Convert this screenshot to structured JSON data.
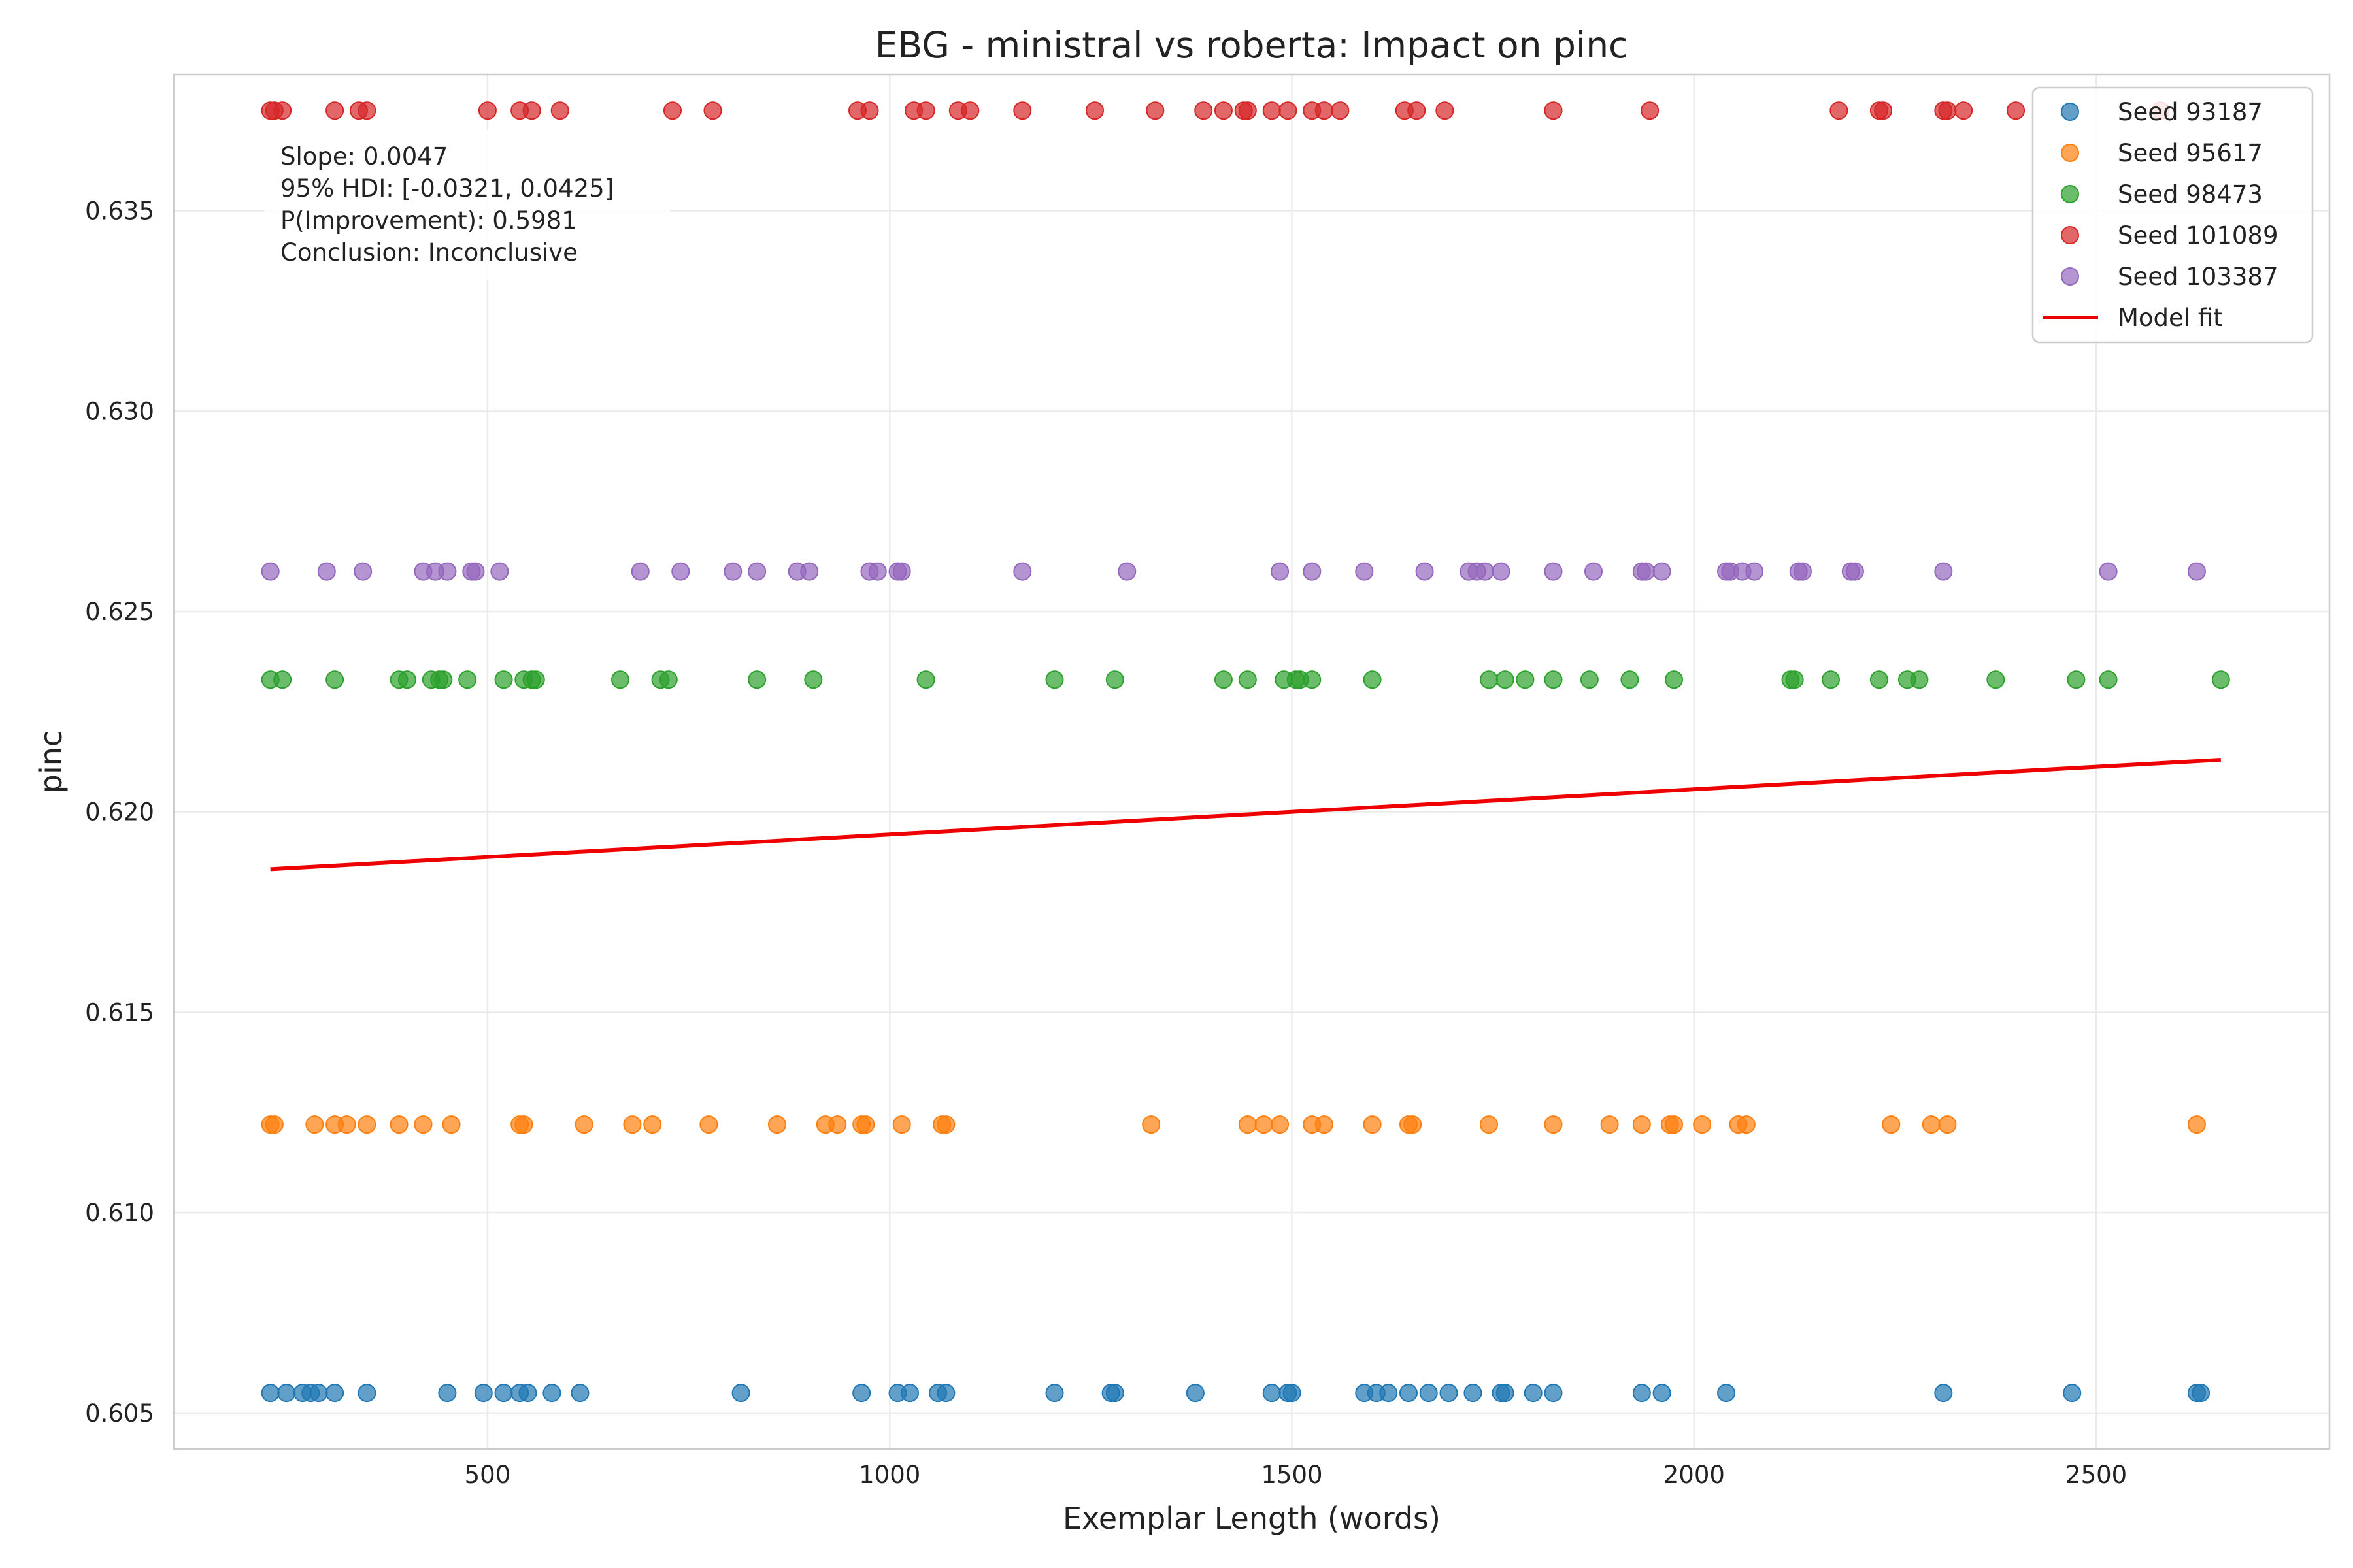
{
  "chart_data": {
    "type": "scatter",
    "title": "EBG - ministral vs roberta: Impact on pinc",
    "xlabel": "Exemplar Length (words)",
    "ylabel": "pinc",
    "xlim": [
      110,
      2790
    ],
    "ylim": [
      0.6041,
      0.6384
    ],
    "xticks": [
      500,
      1000,
      1500,
      2000,
      2500
    ],
    "xtick_labels": [
      "500",
      "1000",
      "1500",
      "2000",
      "2500"
    ],
    "yticks": [
      0.605,
      0.61,
      0.615,
      0.62,
      0.625,
      0.63,
      0.635
    ],
    "ytick_labels": [
      "0.605",
      "0.610",
      "0.615",
      "0.620",
      "0.625",
      "0.630",
      "0.635"
    ],
    "grid": true,
    "legend_position": "top-right",
    "stats_box": {
      "lines": [
        "Slope: 0.0047",
        "95% HDI: [-0.0321, 0.0425]",
        "P(Improvement): 0.5981",
        "Conclusion: Inconclusive"
      ]
    },
    "series": [
      {
        "name": "Seed 93187",
        "color": "#1f77b4",
        "y": 0.6055,
        "x": [
          230,
          250,
          270,
          280,
          290,
          310,
          350,
          450,
          495,
          520,
          540,
          550,
          580,
          615,
          815,
          965,
          1010,
          1025,
          1060,
          1070,
          1205,
          1275,
          1280,
          1380,
          1475,
          1495,
          1500,
          1590,
          1605,
          1620,
          1645,
          1670,
          1695,
          1725,
          1760,
          1765,
          1800,
          1825,
          1935,
          1960,
          2040,
          2310,
          2470,
          2625,
          2630
        ]
      },
      {
        "name": "Seed 95617",
        "color": "#ff7f0e",
        "y": 0.6122,
        "x": [
          230,
          235,
          285,
          310,
          325,
          350,
          390,
          420,
          455,
          540,
          545,
          620,
          680,
          705,
          775,
          860,
          920,
          935,
          965,
          970,
          1015,
          1065,
          1070,
          1325,
          1445,
          1465,
          1485,
          1525,
          1540,
          1600,
          1645,
          1650,
          1745,
          1825,
          1895,
          1935,
          1970,
          1975,
          2010,
          2055,
          2065,
          2245,
          2295,
          2315,
          2625
        ]
      },
      {
        "name": "Seed 98473",
        "color": "#2ca02c",
        "y": 0.6233,
        "x": [
          230,
          245,
          310,
          390,
          400,
          430,
          440,
          445,
          475,
          520,
          545,
          555,
          560,
          665,
          715,
          725,
          835,
          905,
          1045,
          1205,
          1280,
          1415,
          1445,
          1490,
          1505,
          1510,
          1525,
          1600,
          1745,
          1765,
          1790,
          1825,
          1870,
          1920,
          1975,
          2120,
          2125,
          2170,
          2230,
          2265,
          2280,
          2375,
          2475,
          2515,
          2655
        ]
      },
      {
        "name": "Seed 101089",
        "color": "#d62728",
        "y": 0.6375,
        "x": [
          230,
          235,
          245,
          310,
          340,
          350,
          500,
          540,
          555,
          590,
          730,
          780,
          960,
          975,
          1030,
          1045,
          1085,
          1100,
          1165,
          1255,
          1330,
          1390,
          1415,
          1440,
          1445,
          1475,
          1495,
          1525,
          1540,
          1560,
          1640,
          1655,
          1690,
          1825,
          1945,
          2180,
          2230,
          2235,
          2310,
          2315,
          2335,
          2400,
          2580
        ]
      },
      {
        "name": "Seed 103387",
        "color": "#9467bd",
        "y": 0.626,
        "x": [
          230,
          300,
          345,
          420,
          435,
          450,
          480,
          485,
          515,
          690,
          740,
          805,
          835,
          885,
          900,
          975,
          985,
          1010,
          1015,
          1165,
          1295,
          1485,
          1525,
          1590,
          1665,
          1720,
          1730,
          1740,
          1760,
          1825,
          1875,
          1935,
          1940,
          1960,
          2040,
          2045,
          2060,
          2075,
          2130,
          2135,
          2195,
          2200,
          2310,
          2515,
          2625
        ]
      }
    ],
    "fit_line": {
      "name": "Model fit",
      "color": "#ee0000",
      "x": [
        230,
        2655
      ],
      "y": [
        0.61857,
        0.6213
      ]
    }
  }
}
